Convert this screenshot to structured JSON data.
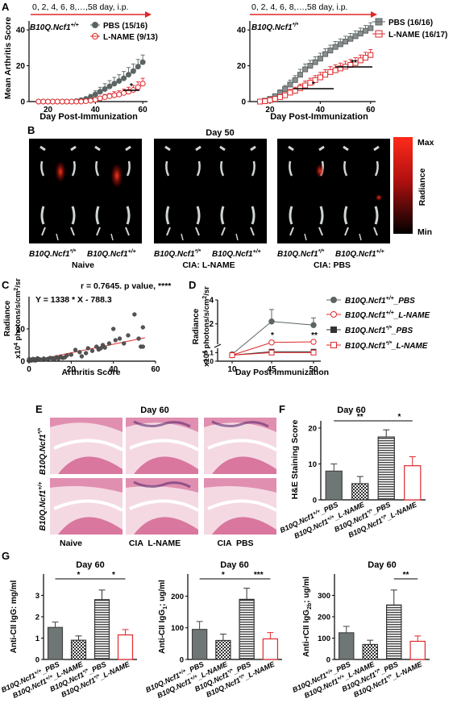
{
  "panels": {
    "A": "A",
    "B": "B",
    "C": "C",
    "D": "D",
    "E": "E",
    "F": "F",
    "G": "G"
  },
  "colors": {
    "pbs": "#5b6564",
    "lname": "#e0282b",
    "timeline": "#e0282b",
    "tissue_pink": "#e9a3bd",
    "bar_dark": "#6f7776"
  },
  "panel_a": {
    "timeline_label": "0, 2, 4, 6, 8,…,58 day, i.p.",
    "left": {
      "strain": "B10Q.Ncf1",
      "strain_sup": "+/+",
      "legend": [
        "PBS (15/16)",
        "L-NAME (9/13)"
      ],
      "significance": [
        "*"
      ]
    },
    "right": {
      "strain": "B10Q.Ncf1",
      "strain_sup": "*/*",
      "legend": [
        "PBS (16/16)",
        "L-NAME (16/17)"
      ],
      "significance": [
        "*",
        "**"
      ]
    },
    "ylabel": "Mean Arthritis Score",
    "xlabel": "Day Post-Immunization",
    "yticks": [
      "0",
      "20",
      "40"
    ],
    "xticks": [
      "20",
      "40",
      "60"
    ]
  },
  "panel_b": {
    "title": "Day 50",
    "colorbar_max": "Max",
    "colorbar_min": "Min",
    "colorbar_label": "Radiance",
    "groups": [
      {
        "mouse_left": "B10Q.Ncf1",
        "sup_left": "*/*",
        "mouse_right": "B10Q.Ncf1",
        "sup_right": "+/+",
        "caption": "Naive"
      },
      {
        "mouse_left": "B10Q.Ncf1",
        "sup_left": "*/*",
        "mouse_right": "B10Q.Ncf1",
        "sup_right": "+/+",
        "caption": "CIA: L-NAME"
      },
      {
        "mouse_left": "B10Q.Ncf1",
        "sup_left": "*/*",
        "mouse_right": "B10Q.Ncf1",
        "sup_right": "+/+",
        "caption": "CIA: PBS"
      }
    ]
  },
  "panel_c": {
    "stat": "r = 0.7645. p value, ****",
    "equation": "Y = 1338 * X - 788.3",
    "ylabel_1": "Radiance",
    "ylabel_2": "x10",
    "ylabel_sup": "4",
    "ylabel_3": " photons/s/cm",
    "ylabel_sup2": "2",
    "ylabel_4": "/sr",
    "xlabel": "Arthritis Score",
    "xticks": [
      "0",
      "20",
      "40",
      "60"
    ],
    "yticks": [
      "0",
      "10"
    ]
  },
  "panel_d": {
    "ylabel_1": "Radiance",
    "ylabel_2": "x10",
    "ylabel_sup": "4",
    "ylabel_3": " photons/s/cm",
    "ylabel_sup2": "2",
    "ylabel_4": "/sr",
    "xlabel": "Day Post-Immunization",
    "xticks": [
      "10",
      "45",
      "50"
    ],
    "yticks_top": [
      "2",
      "4"
    ],
    "yticks_bottom": [
      "0.0",
      "0.1"
    ],
    "significance": [
      "*",
      "**"
    ],
    "legend": [
      {
        "strain": "B10Q.Ncf1",
        "sup": "+/+",
        "treat": "_PBS"
      },
      {
        "strain": "B10Q.Ncf1",
        "sup": "+/+",
        "treat": "_L-NAME"
      },
      {
        "strain": "B10Q.Ncf1",
        "sup": "*/*",
        "treat": "_PBS"
      },
      {
        "strain": "B10Q.Ncf1",
        "sup": "*/*",
        "treat": "_L-NAME"
      }
    ]
  },
  "panel_e": {
    "title": "Day 60",
    "row_labels": [
      {
        "strain": "B10Q.Ncf1",
        "sup": "*/*"
      },
      {
        "strain": "B10Q.Ncf1",
        "sup": "+/+"
      }
    ],
    "col_labels": [
      "Naive",
      "CIA  L-NAME",
      "CIA  PBS"
    ]
  },
  "panel_f": {
    "title": "Day 60",
    "ylabel": "H&E Staining Score",
    "yticks": [
      "0",
      "10",
      "20"
    ],
    "significance": [
      "**",
      "*"
    ],
    "categories": [
      {
        "strain": "B10Q.Ncf1",
        "sup": "+/+",
        "treat": "_PBS"
      },
      {
        "strain": "B10Q.Ncf1",
        "sup": "+/+",
        "treat": "_L-NAME"
      },
      {
        "strain": "B10Q.Ncf1",
        "sup": "*/*",
        "treat": "_PBS"
      },
      {
        "strain": "B10Q.Ncf1",
        "sup": "*/*",
        "treat": "_L-NAME"
      }
    ]
  },
  "panel_g": {
    "charts": [
      {
        "title": "Day 60",
        "ylabel": "Anti-CII IgG: mg/ml",
        "sub": "",
        "yticks": [
          "0",
          "1",
          "2",
          "3"
        ],
        "significance": [
          "*",
          "*"
        ]
      },
      {
        "title": "Day 60",
        "ylabel": "Anti-CII IgG",
        "sub": "1",
        "unit": "; ug/ml",
        "yticks": [
          "0",
          "100",
          "200"
        ],
        "significance": [
          "*",
          "***"
        ]
      },
      {
        "title": "Day 60",
        "ylabel": "Anti-rCII IgG",
        "sub": "2b",
        "unit": "; ug/ml",
        "yticks": [
          "0",
          "100",
          "200",
          "300"
        ],
        "significance": [
          "**"
        ]
      }
    ],
    "categories": [
      {
        "strain": "B10Q.Ncf1",
        "sup": "+/+",
        "treat": "_PBS"
      },
      {
        "strain": "B10Q.Ncf1",
        "sup": "+/+",
        "treat": "_L-NAME"
      },
      {
        "strain": "B10Q.Ncf1",
        "sup": "*/*",
        "treat": "_PBS"
      },
      {
        "strain": "B10Q.Ncf1",
        "sup": "*/*",
        "treat": "_L-NAME"
      }
    ]
  },
  "chart_data": [
    {
      "type": "line",
      "panel": "A-left",
      "xlabel": "Day Post-Immunization",
      "ylabel": "Mean Arthritis Score",
      "xlim": [
        12,
        62
      ],
      "ylim": [
        0,
        45
      ],
      "x": [
        16,
        18,
        20,
        22,
        24,
        26,
        28,
        30,
        32,
        34,
        36,
        38,
        40,
        42,
        44,
        46,
        48,
        50,
        52,
        54,
        56,
        58,
        60
      ],
      "series": [
        {
          "name": "PBS (15/16)",
          "values": [
            0,
            0,
            0,
            0,
            0,
            0,
            0,
            0,
            0.3,
            0.8,
            1.5,
            2.5,
            4,
            5.5,
            7,
            8.5,
            10,
            11.5,
            13,
            15,
            17,
            19.5,
            22
          ],
          "errors": [
            0,
            0,
            0,
            0,
            0,
            0,
            0,
            0,
            0.3,
            0.6,
            1,
            1.5,
            2,
            2.5,
            3,
            3.2,
            3.5,
            3.5,
            3.8,
            4,
            4,
            4,
            4
          ]
        },
        {
          "name": "L-NAME (9/13)",
          "values": [
            0,
            0,
            0,
            0,
            0,
            0,
            0,
            0,
            0,
            0,
            0.2,
            0.5,
            1,
            1.8,
            2.5,
            3,
            3.5,
            4,
            4.8,
            5.5,
            6.5,
            8,
            10
          ],
          "errors": [
            0,
            0,
            0,
            0,
            0,
            0,
            0,
            0,
            0,
            0,
            0.2,
            0.4,
            0.8,
            1,
            1.5,
            1.5,
            2,
            2,
            2.2,
            2.5,
            2.5,
            3,
            3
          ]
        }
      ]
    },
    {
      "type": "line",
      "panel": "A-right",
      "xlabel": "Day Post-Immunization",
      "ylabel": "",
      "xlim": [
        12,
        62
      ],
      "ylim": [
        0,
        45
      ],
      "x": [
        16,
        18,
        20,
        22,
        24,
        26,
        28,
        30,
        32,
        34,
        36,
        38,
        40,
        42,
        44,
        46,
        48,
        50,
        52,
        54,
        56,
        58,
        60
      ],
      "series": [
        {
          "name": "PBS (16/16)",
          "values": [
            0,
            0.5,
            1.5,
            3,
            5,
            7,
            9.5,
            12,
            15,
            18,
            20,
            22,
            24,
            26.5,
            28.5,
            30.5,
            32,
            33.5,
            35,
            36.5,
            38,
            39.5,
            41
          ],
          "errors": [
            0,
            0.3,
            0.8,
            1.2,
            1.5,
            2,
            2.5,
            2.5,
            3,
            3,
            3,
            3,
            3,
            3,
            3,
            3,
            3,
            3,
            3,
            3,
            3,
            3,
            3
          ]
        },
        {
          "name": "L-NAME (16/17)",
          "values": [
            0,
            0.2,
            0.8,
            1.5,
            2.5,
            3.5,
            5,
            6,
            7.5,
            9,
            10.5,
            12,
            13.5,
            15,
            16.5,
            17.5,
            18.5,
            19.5,
            20.5,
            21.5,
            23,
            24.5,
            26
          ],
          "errors": [
            0,
            0.2,
            0.5,
            0.8,
            1,
            1.5,
            1.8,
            2,
            2.2,
            2.5,
            2.5,
            2.5,
            2.8,
            2.8,
            3,
            3,
            3,
            3,
            3,
            3,
            3,
            3,
            3
          ]
        }
      ]
    },
    {
      "type": "scatter",
      "panel": "C",
      "xlabel": "Arthritis Score",
      "xlim": [
        0,
        60
      ],
      "ylim": [
        0,
        20
      ],
      "x": [
        0,
        0,
        0,
        0,
        1,
        1,
        2,
        2,
        3,
        3,
        4,
        4,
        5,
        6,
        7,
        8,
        9,
        10,
        11,
        12,
        13,
        14,
        15,
        16,
        17,
        18,
        20,
        22,
        24,
        25,
        27,
        28,
        30,
        32,
        33,
        34,
        35,
        36,
        38,
        40,
        41,
        43,
        45,
        47,
        50,
        52,
        53,
        54,
        54
      ],
      "y": [
        0.1,
        0.2,
        0.4,
        0.6,
        0.2,
        0.5,
        0.3,
        0.7,
        0.2,
        0.5,
        0.4,
        0.9,
        0.6,
        0.4,
        0.8,
        0.5,
        0.7,
        1.0,
        0.9,
        0.6,
        1.2,
        0.8,
        1.4,
        1.0,
        1.2,
        1.8,
        2.0,
        3.5,
        2.8,
        1.5,
        2.5,
        4.0,
        3.2,
        4.5,
        3.6,
        4.0,
        5.0,
        4.2,
        5.5,
        10.0,
        6.5,
        7.0,
        5.5,
        8.0,
        14.5,
        7.0,
        4.5,
        4.5,
        10.5
      ],
      "fit_line": {
        "slope": 1338,
        "intercept": -788.3
      }
    },
    {
      "type": "line",
      "panel": "D",
      "xlabel": "Day Post-Immunization",
      "categories": [
        "10",
        "45",
        "50"
      ],
      "series": [
        {
          "name": "B10Q.Ncf1+/+_PBS",
          "values": [
            0.08,
            2.2,
            1.9
          ],
          "errors": [
            0.01,
            1.0,
            0.6
          ]
        },
        {
          "name": "B10Q.Ncf1+/+_L-NAME",
          "values": [
            0.07,
            0.45,
            0.5
          ],
          "errors": [
            0.01,
            0.05,
            0.05
          ]
        },
        {
          "name": "B10Q.Ncf1*/*_PBS",
          "values": [
            0.07,
            0.11,
            0.11
          ],
          "errors": [
            0.005,
            0.005,
            0.005
          ]
        },
        {
          "name": "B10Q.Ncf1*/*_L-NAME",
          "values": [
            0.07,
            0.1,
            0.1
          ],
          "errors": [
            0.005,
            0.005,
            0.005
          ]
        }
      ]
    },
    {
      "type": "bar",
      "panel": "F",
      "ylabel": "H&E Staining Score",
      "ylim": [
        0,
        22
      ],
      "categories": [
        "B10Q.Ncf1+/+_PBS",
        "B10Q.Ncf1+/+_L-NAME",
        "B10Q.Ncf1*/*_PBS",
        "B10Q.Ncf1*/*_L-NAME"
      ],
      "values": [
        8,
        4.5,
        17.5,
        9.5
      ],
      "errors": [
        2,
        2,
        2,
        2.5
      ]
    },
    {
      "type": "bar",
      "panel": "G1",
      "ylabel": "Anti-CII IgG: mg/ml",
      "ylim": [
        0,
        4
      ],
      "categories": [
        "B10Q.Ncf1+/+_PBS",
        "B10Q.Ncf1+/+_L-NAME",
        "B10Q.Ncf1*/*_PBS",
        "B10Q.Ncf1*/*_L-NAME"
      ],
      "values": [
        1.5,
        0.9,
        2.8,
        1.15
      ],
      "errors": [
        0.25,
        0.2,
        0.45,
        0.25
      ]
    },
    {
      "type": "bar",
      "panel": "G2",
      "ylabel": "Anti-CII IgG1; ug/ml",
      "ylim": [
        0,
        270
      ],
      "categories": [
        "B10Q.Ncf1+/+_PBS",
        "B10Q.Ncf1+/+_L-NAME",
        "B10Q.Ncf1*/*_PBS",
        "B10Q.Ncf1*/*_L-NAME"
      ],
      "values": [
        95,
        60,
        190,
        65
      ],
      "errors": [
        25,
        20,
        35,
        20
      ]
    },
    {
      "type": "bar",
      "panel": "G3",
      "ylabel": "Anti-rCII IgG2b; ug/ml",
      "ylim": [
        0,
        400
      ],
      "categories": [
        "B10Q.Ncf1+/+_PBS",
        "B10Q.Ncf1+/+_L-NAME",
        "B10Q.Ncf1*/*_PBS",
        "B10Q.Ncf1*/*_L-NAME"
      ],
      "values": [
        125,
        70,
        255,
        85
      ],
      "errors": [
        30,
        20,
        70,
        25
      ]
    }
  ]
}
